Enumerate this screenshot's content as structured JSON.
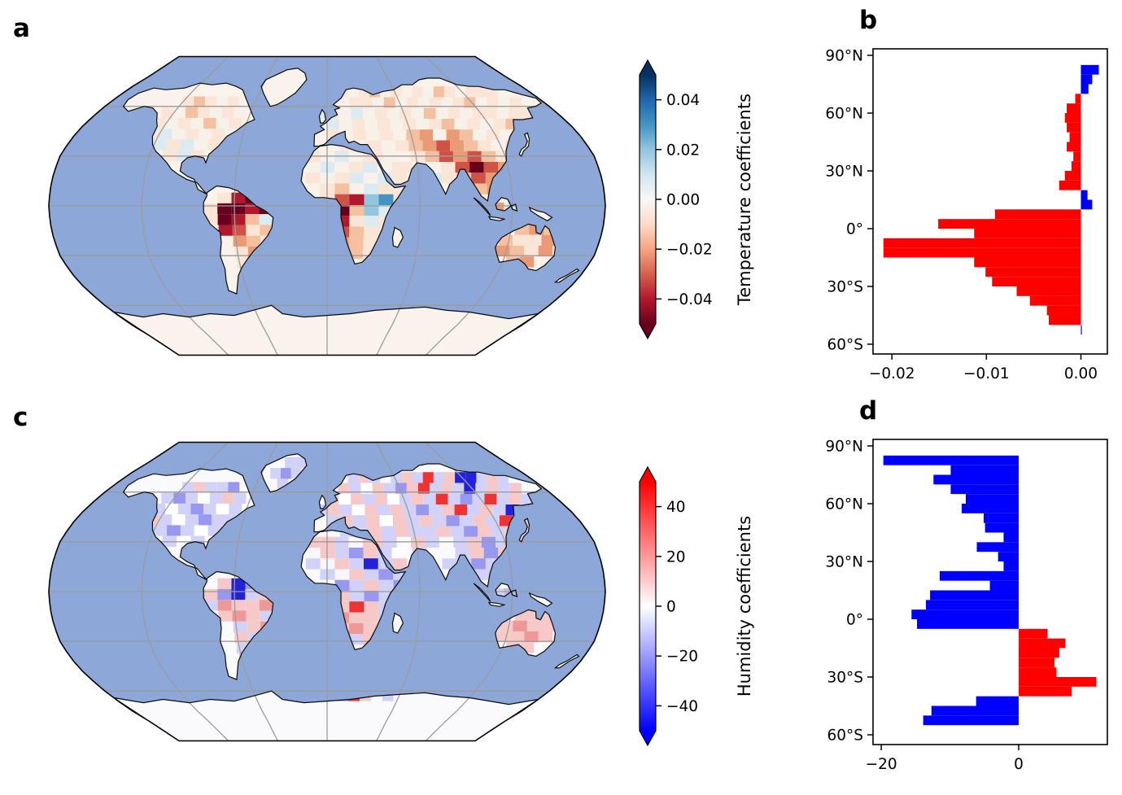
{
  "panels": {
    "a": {
      "label": "a"
    },
    "b": {
      "label": "b"
    },
    "c": {
      "label": "c"
    },
    "d": {
      "label": "d"
    }
  },
  "colorbars": {
    "temperature": {
      "title": "Temperature coefficients",
      "vmin": -0.05,
      "vmax": 0.05,
      "ticks": [
        {
          "v": 0.04,
          "label": "0.04"
        },
        {
          "v": 0.02,
          "label": "0.02"
        },
        {
          "v": 0.0,
          "label": "0.00"
        },
        {
          "v": -0.02,
          "label": "−0.02"
        },
        {
          "v": -0.04,
          "label": "−0.04"
        }
      ],
      "stops": [
        "#053061",
        "#2166ac",
        "#4393c3",
        "#92c5de",
        "#d1e5f0",
        "#f7f7f7",
        "#fddbc7",
        "#f4a582",
        "#d6604d",
        "#b2182b",
        "#67001f"
      ]
    },
    "humidity": {
      "title": "Humidity coefficients",
      "vmin": -50,
      "vmax": 50,
      "ticks": [
        {
          "v": 40,
          "label": "40"
        },
        {
          "v": 20,
          "label": "20"
        },
        {
          "v": 0,
          "label": "0"
        },
        {
          "v": -20,
          "label": "−20"
        },
        {
          "v": -40,
          "label": "−40"
        }
      ],
      "stops": [
        "#ff0000",
        "#ff8080",
        "#ffffff",
        "#8080ff",
        "#0000ff"
      ]
    }
  },
  "chart_data": [
    {
      "id": "b",
      "type": "bar",
      "orientation": "horizontal",
      "quantity": "Temperature coefficients",
      "ylim": [
        -60,
        90
      ],
      "xlim": [
        -0.022,
        0.0028
      ],
      "xticks": [
        {
          "v": -0.02,
          "label": "−0.02"
        },
        {
          "v": -0.01,
          "label": "−0.01"
        },
        {
          "v": 0.0,
          "label": "0.00"
        }
      ],
      "yticks": [
        {
          "v": 90,
          "label": "90°N"
        },
        {
          "v": 60,
          "label": "60°N"
        },
        {
          "v": 30,
          "label": "30°N"
        },
        {
          "v": 0,
          "label": "0°"
        },
        {
          "v": -30,
          "label": "30°S"
        },
        {
          "v": -60,
          "label": "60°S"
        }
      ],
      "bin_width_deg": 5,
      "lat_bin_centers": [
        87.5,
        82.5,
        77.5,
        72.5,
        67.5,
        62.5,
        57.5,
        52.5,
        47.5,
        42.5,
        37.5,
        32.5,
        27.5,
        22.5,
        17.5,
        12.5,
        7.5,
        2.5,
        -2.5,
        -7.5,
        -12.5,
        -17.5,
        -22.5,
        -27.5,
        -32.5,
        -37.5,
        -42.5,
        -47.5,
        -52.5,
        -57.5
      ],
      "values": [
        0,
        0.0019,
        0.0012,
        0.0008,
        -0.0006,
        -0.0015,
        -0.0017,
        -0.0015,
        -0.0012,
        -0.0015,
        -0.0008,
        -0.001,
        -0.0017,
        -0.0023,
        0.0007,
        0.0012,
        -0.0091,
        -0.0151,
        -0.0113,
        -0.0209,
        -0.0209,
        -0.0113,
        -0.0101,
        -0.0094,
        -0.0068,
        -0.0054,
        -0.0036,
        -0.0034,
        0.0001,
        0
      ],
      "pos_color": "#0000ff",
      "neg_color": "#ff0000"
    },
    {
      "id": "d",
      "type": "bar",
      "orientation": "horizontal",
      "quantity": "Humidity coefficients",
      "ylim": [
        -60,
        90
      ],
      "xlim": [
        -21.2,
        12.9
      ],
      "xticks": [
        {
          "v": -20,
          "label": "−20"
        },
        {
          "v": 0,
          "label": "0"
        }
      ],
      "yticks": [
        {
          "v": 90,
          "label": "90°N"
        },
        {
          "v": 60,
          "label": "60°N"
        },
        {
          "v": 30,
          "label": "30°N"
        },
        {
          "v": 0,
          "label": "0°"
        },
        {
          "v": -30,
          "label": "30°S"
        },
        {
          "v": -60,
          "label": "60°S"
        }
      ],
      "bin_width_deg": 5,
      "lat_bin_centers": [
        87.5,
        82.5,
        77.5,
        72.5,
        67.5,
        62.5,
        57.5,
        52.5,
        47.5,
        42.5,
        37.5,
        32.5,
        27.5,
        22.5,
        17.5,
        12.5,
        7.5,
        2.5,
        -2.5,
        -7.5,
        -12.5,
        -17.5,
        -22.5,
        -27.5,
        -32.5,
        -37.5,
        -42.5,
        -47.5,
        -52.5,
        -57.5
      ],
      "values": [
        0,
        -19.7,
        -9.9,
        -12.4,
        -9.9,
        -7.7,
        -8.3,
        -5.1,
        -4.9,
        -2.2,
        -6.1,
        -3.0,
        -2.2,
        -11.5,
        -4.2,
        -12.9,
        -13.5,
        -15.6,
        -14.8,
        4.2,
        6.8,
        5.9,
        5.2,
        5.5,
        11.3,
        7.7,
        -6.2,
        -12.7,
        -13.9,
        0
      ],
      "pos_color": "#ff0000",
      "neg_color": "#0000ff"
    }
  ],
  "maps": {
    "a": {
      "quantity": "Temperature coefficients",
      "ocean": "#8ca7d8",
      "land": "#f9f3ec",
      "grid": "#9b9b9b",
      "coast": "#0a0a0a",
      "palette": {
        "W": "#f8f1ea",
        "w": "#fbe5d6",
        "r": "#f5c0a0",
        "o": "#ea9b76",
        "R": "#cf5246",
        "C": "#b2182b",
        "D": "#67001f",
        "b": "#dcebf2",
        "B": "#92c5de",
        "S": "#4393c3",
        "N": "#2166ac"
      },
      "regions": [
        {
          "name": "north-america",
          "lon0": -130,
          "lat0": 66,
          "dlon": 9.5,
          "dlat": 6.5,
          "rows": [
            ".wrwWw.",
            "wWrwWwW",
            "wWwWrWw",
            "wbWwWwW",
            ".bwbWw.",
            "..wbw.."
          ]
        },
        {
          "name": "south-america",
          "lon0": -80,
          "lat0": 8,
          "dlon": 9,
          "dlat": 6.5,
          "rows": [
            ".wCDw..",
            "wDDCDC.",
            "wDCrbS.",
            ".CRwrww",
            "..orww.",
            "..wor..",
            "..wrw..",
            "..ww..."
          ]
        },
        {
          "name": "africa",
          "lon0": -14,
          "lat0": 33,
          "dlon": 9.5,
          "dlat": 6.5,
          "rows": [
            "wWbWwb.",
            "WbWwbWw",
            "wWwbWbw",
            ".wrWbww",
            ".wRCBSw",
            ".RDrBbw",
            ".RCwbww",
            ".CRrww.",
            ".rorw..",
            "..wrw.."
          ]
        },
        {
          "name": "eurasia",
          "lon0": -10,
          "lat0": 72,
          "dlon": 9.5,
          "dlat": 6.5,
          "rows": [
            "..wWwrWwWwWrwWwww...",
            ".wWwwWrWwWwWwrWwWw..",
            "bwWbWwWwWrWwWwwWww..",
            ".bWwWwWwWwrWwWwrWww.",
            ".wWwWwWroWorWwWwWw..",
            "..wWwWwroRorwWwWww..",
            "....wW.wrRoRrw.ww...",
            "......w..wRDRor.w...",
            "........bwrRoRr.....",
            "...........ror......"
          ]
        },
        {
          "name": "australia",
          "lon0": 113,
          "lat0": -11,
          "dlon": 9.5,
          "dlat": 6.5,
          "rows": [
            ".ror.",
            "rwwor",
            "orwo.",
            ".ro.."
          ]
        },
        {
          "name": "indonesia",
          "lon0": 105,
          "lat0": 2,
          "dlon": 9.5,
          "dlat": 6.5,
          "rows": [
            "ob.",
            ".b."
          ]
        }
      ]
    },
    "c": {
      "quantity": "Humidity coefficients",
      "ocean": "#8ca7d8",
      "land": "#fafafc",
      "grid": "#9b9b9b",
      "coast": "#0a0a0a",
      "palette": {
        "W": "#f7f6fa",
        "w": "#ffffff",
        "p": "#f6c8c8",
        "P": "#ee9898",
        "R": "#ee3333",
        "b": "#d2d2f8",
        "B": "#9898f0",
        "N": "#2222dd",
        "v": "#c8b8ee"
      },
      "regions": [
        {
          "name": "north-america",
          "lon0": -130,
          "lat0": 66,
          "dlon": 9.5,
          "dlat": 6.5,
          "rows": [
            ".bpbbB.",
            "bBbwbpb",
            "bwbBbwb",
            "pbwbBbb",
            ".bBbwb.",
            "..bwb.."
          ]
        },
        {
          "name": "greenland",
          "lon0": -52,
          "lat0": 81,
          "dlon": 9.5,
          "dlat": 6.5,
          "rows": [
            ".bbb",
            "bBb.",
            ".b.."
          ]
        },
        {
          "name": "south-america",
          "lon0": -80,
          "lat0": 8,
          "dlon": 9,
          "dlat": 6.5,
          "rows": [
            ".pNBb..",
            "pBNbpb.",
            "bPppPp.",
            ".pPpbw.",
            "..bpPb.",
            "..pbp..",
            "..bpb..",
            "..pp..."
          ]
        },
        {
          "name": "africa",
          "lon0": -14,
          "lat0": 33,
          "dlon": 9.5,
          "dlat": 6.5,
          "rows": [
            "ppbWpb.",
            "WpbBpbw",
            "bWpbNbp",
            ".bWpbBb",
            ".wBbpbB",
            ".NpbBbw",
            ".bpRpbw",
            ".pPppb.",
            ".bpPp..",
            "..pbp.."
          ]
        },
        {
          "name": "eurasia",
          "lon0": -10,
          "lat0": 72,
          "dlon": 9.5,
          "dlat": 6.5,
          "rows": [
            "...bpb.bpbRbpNNbpb..",
            "..pbwpbBpRbpbNbpbp..",
            ".pwpbpwbpbRbBbRbpb..",
            "bpbwpbpbBbpRbpbNbpb.",
            ".bpbpwpbpbBbpbRbpb..",
            "..bbpbpbbpbBpbpbb...",
            "....pb.pb.bpBbpb.b..",
            ".......b..bpBpb.....",
            ".........bbBbb......",
            "...........bb......."
          ]
        },
        {
          "name": "australia",
          "lon0": 113,
          "lat0": -11,
          "dlon": 9.5,
          "dlat": 6.5,
          "rows": [
            ".ppp.",
            "pPppp",
            "ppPp.",
            ".pp.."
          ]
        },
        {
          "name": "indonesia",
          "lon0": 105,
          "lat0": 2,
          "dlon": 9.5,
          "dlat": 6.5,
          "rows": [
            "bv.",
            ".b."
          ]
        },
        {
          "name": "antarctica-coast",
          "lon0": -20,
          "lat0": -62,
          "dlon": 9.5,
          "dlat": 4,
          "rows": [
            "pRbBRp.b"
          ]
        }
      ]
    }
  }
}
